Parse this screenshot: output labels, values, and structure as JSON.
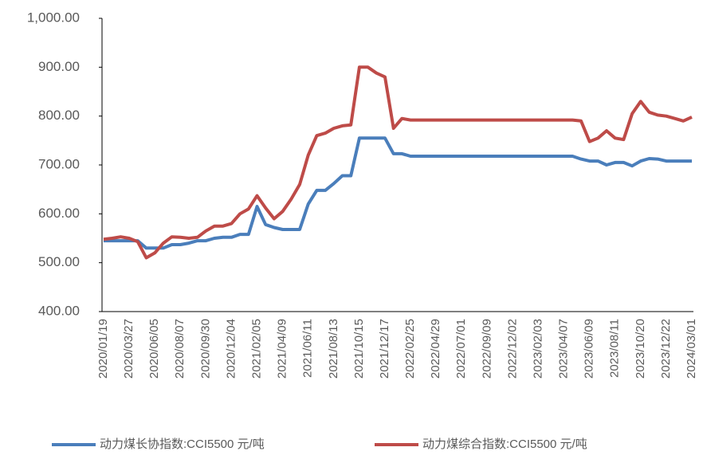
{
  "chart_data": {
    "type": "line",
    "categories": [
      "2020/01/19",
      null,
      null,
      "2020/03/27",
      null,
      null,
      "2020/06/05",
      null,
      null,
      "2020/08/07",
      null,
      null,
      "2020/09/30",
      null,
      null,
      "2020/12/04",
      null,
      null,
      "2021/02/05",
      null,
      null,
      "2021/04/09",
      null,
      null,
      "2021/06/11",
      null,
      null,
      "2021/08/13",
      null,
      null,
      "2021/10/15",
      null,
      null,
      "2021/12/17",
      null,
      null,
      "2022/02/25",
      null,
      null,
      "2022/04/29",
      null,
      null,
      "2022/07/01",
      null,
      null,
      "2022/09/09",
      null,
      null,
      "2022/12/02",
      null,
      null,
      "2023/02/03",
      null,
      null,
      "2023/04/07",
      null,
      null,
      "2023/06/09",
      null,
      null,
      "2023/08/11",
      null,
      null,
      "2023/10/20",
      null,
      null,
      "2023/12/22",
      null,
      null,
      "2024/03/01"
    ],
    "series": [
      {
        "name": "动力煤长协指数:CCI5500 元/吨",
        "color": "#4a7ebb",
        "values": [
          545,
          545,
          545,
          545,
          545,
          530,
          530,
          530,
          537,
          537,
          540,
          545,
          545,
          550,
          552,
          552,
          558,
          558,
          615,
          578,
          572,
          568,
          568,
          568,
          620,
          648,
          648,
          662,
          678,
          678,
          755,
          755,
          755,
          755,
          723,
          723,
          718,
          718,
          718,
          718,
          718,
          718,
          718,
          718,
          718,
          718,
          718,
          718,
          718,
          718,
          718,
          718,
          718,
          718,
          718,
          718,
          712,
          708,
          708,
          700,
          705,
          705,
          698,
          708,
          713,
          712,
          708,
          708,
          708,
          708
        ]
      },
      {
        "name": "动力煤综合指数:CCI5500 元/吨",
        "color": "#be4b48",
        "values": [
          548,
          550,
          553,
          550,
          543,
          510,
          520,
          540,
          553,
          552,
          550,
          552,
          565,
          575,
          575,
          580,
          600,
          610,
          637,
          612,
          590,
          605,
          630,
          660,
          720,
          760,
          765,
          775,
          780,
          782,
          900,
          900,
          888,
          880,
          775,
          795,
          792,
          792,
          792,
          792,
          792,
          792,
          792,
          792,
          792,
          792,
          792,
          792,
          792,
          792,
          792,
          792,
          792,
          792,
          792,
          792,
          790,
          748,
          755,
          770,
          755,
          752,
          805,
          830,
          808,
          802,
          800,
          795,
          790,
          798
        ]
      }
    ],
    "ylim": [
      400,
      1000
    ],
    "yticks": [
      {
        "value": 400,
        "label": "400.00"
      },
      {
        "value": 500,
        "label": "500.00"
      },
      {
        "value": 600,
        "label": "600.00"
      },
      {
        "value": 700,
        "label": "700.00"
      },
      {
        "value": 800,
        "label": "800.00"
      },
      {
        "value": 900,
        "label": "900.00"
      },
      {
        "value": 1000,
        "label": "1,000.00"
      }
    ],
    "grid": false,
    "legend": "bottom"
  }
}
